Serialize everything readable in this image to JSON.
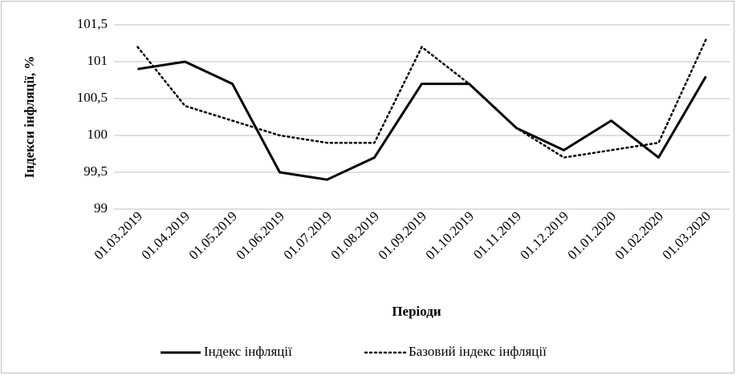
{
  "chart_data": {
    "type": "line",
    "categories": [
      "01.03.2019",
      "01.04.2019",
      "01.05.2019",
      "01.06.2019",
      "01.07.2019",
      "01.08.2019",
      "01.09.2019",
      "01.10.2019",
      "01.11.2019",
      "01.12.2019",
      "01.01.2020",
      "01.02.2020",
      "01.03.2020"
    ],
    "series": [
      {
        "name": "Індекс інфляції",
        "color": "#000000",
        "dash": "solid",
        "values": [
          100.9,
          101.0,
          100.7,
          99.5,
          99.4,
          99.7,
          100.7,
          100.7,
          100.1,
          99.8,
          100.2,
          99.7,
          100.8
        ]
      },
      {
        "name": "Базовий індекс інфляції",
        "color": "#000000",
        "dash": "dotted",
        "values": [
          101.2,
          100.4,
          100.2,
          100.0,
          99.9,
          99.9,
          101.2,
          100.7,
          100.1,
          99.7,
          99.8,
          99.9,
          101.3
        ]
      }
    ],
    "ylim": [
      99,
      101.5
    ],
    "yticks": [
      99,
      {
        "value": 99.5,
        "label": "99,5"
      },
      100,
      {
        "value": 100.5,
        "label": "100,5"
      },
      101,
      {
        "value": 101.5,
        "label": "101,5"
      }
    ],
    "ylabel": "Індекси інфляції, %",
    "xlabel": "Періоди",
    "grid": true,
    "legend": "bottom"
  }
}
